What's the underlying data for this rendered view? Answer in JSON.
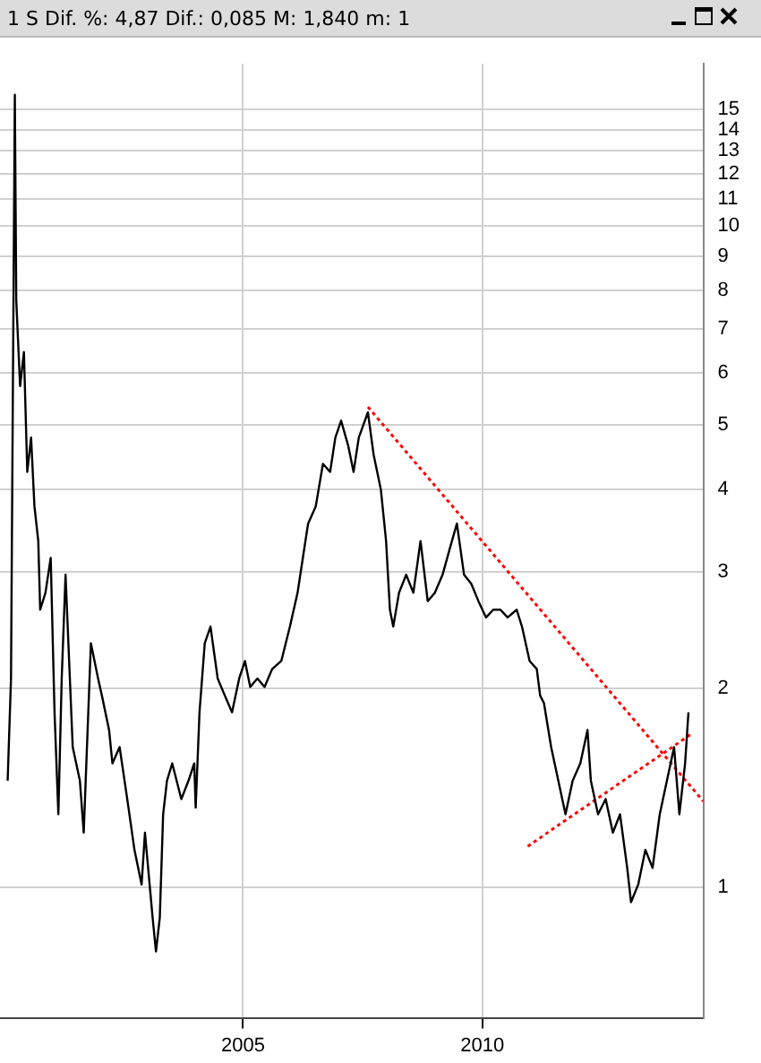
{
  "chart_data": {
    "type": "line",
    "title": "1 S Dif. %: 4,87 Dif.: 0,085 M: 1,840 m: 1",
    "log": "y",
    "grid": true,
    "legend": false,
    "marker": "none",
    "xlim": [
      1999.92,
      2014.62
    ],
    "xticks": [
      2005,
      2010
    ],
    "ylim": [
      0.635,
      17.6
    ],
    "yticks": [
      1,
      2,
      3,
      4,
      5,
      6,
      7,
      8,
      9,
      10,
      11,
      12,
      13,
      14,
      15
    ],
    "series": [
      {
        "color": "#000000",
        "x": [
          2000.08,
          2000.15,
          2000.23,
          2000.26,
          2000.34,
          2000.42,
          2000.49,
          2000.57,
          2000.64,
          2000.72,
          2000.76,
          2000.87,
          2000.98,
          2001.06,
          2001.14,
          2001.21,
          2001.29,
          2001.44,
          2001.59,
          2001.67,
          2001.82,
          2001.97,
          2002.05,
          2002.2,
          2002.27,
          2002.42,
          2002.58,
          2002.73,
          2002.88,
          2002.95,
          2003.11,
          2003.18,
          2003.26,
          2003.33,
          2003.41,
          2003.52,
          2003.71,
          2003.86,
          2003.98,
          2004.01,
          2004.09,
          2004.2,
          2004.32,
          2004.47,
          2004.62,
          2004.77,
          2004.92,
          2005.04,
          2005.15,
          2005.3,
          2005.45,
          2005.61,
          2005.8,
          2005.98,
          2006.14,
          2006.25,
          2006.36,
          2006.52,
          2006.67,
          2006.82,
          2006.93,
          2007.05,
          2007.2,
          2007.31,
          2007.42,
          2007.61,
          2007.73,
          2007.88,
          2007.99,
          2008.07,
          2008.14,
          2008.26,
          2008.41,
          2008.56,
          2008.71,
          2008.86,
          2009.01,
          2009.17,
          2009.32,
          2009.47,
          2009.62,
          2009.77,
          2009.92,
          2010.08,
          2010.23,
          2010.38,
          2010.53,
          2010.72,
          2010.83,
          2010.99,
          2011.14,
          2011.21,
          2011.29,
          2011.44,
          2011.59,
          2011.74,
          2011.89,
          2012.05,
          2012.2,
          2012.27,
          2012.42,
          2012.58,
          2012.73,
          2012.88,
          2013.03,
          2013.11,
          2013.26,
          2013.41,
          2013.56,
          2013.71,
          2013.86,
          2014.01,
          2014.12,
          2014.24,
          2014.31
        ],
        "values": [
          1.45,
          2.07,
          15.8,
          7.72,
          5.73,
          6.45,
          4.25,
          4.79,
          3.77,
          3.34,
          2.63,
          2.79,
          3.15,
          1.84,
          1.29,
          2.07,
          2.97,
          1.63,
          1.45,
          1.21,
          2.34,
          2.07,
          1.95,
          1.73,
          1.54,
          1.63,
          1.36,
          1.14,
          1.01,
          1.21,
          0.9,
          0.8,
          0.9,
          1.29,
          1.45,
          1.54,
          1.36,
          1.45,
          1.54,
          1.32,
          1.84,
          2.34,
          2.48,
          2.07,
          1.95,
          1.84,
          2.07,
          2.2,
          2.01,
          2.07,
          2.01,
          2.14,
          2.2,
          2.48,
          2.79,
          3.15,
          3.55,
          3.77,
          4.37,
          4.25,
          4.79,
          5.08,
          4.65,
          4.25,
          4.79,
          5.23,
          4.51,
          4.0,
          3.34,
          2.63,
          2.48,
          2.79,
          2.97,
          2.79,
          3.34,
          2.71,
          2.79,
          2.97,
          3.25,
          3.55,
          2.97,
          2.88,
          2.71,
          2.56,
          2.63,
          2.63,
          2.56,
          2.63,
          2.48,
          2.2,
          2.14,
          1.95,
          1.9,
          1.63,
          1.45,
          1.29,
          1.45,
          1.54,
          1.73,
          1.45,
          1.29,
          1.36,
          1.21,
          1.29,
          1.07,
          0.95,
          1.01,
          1.14,
          1.07,
          1.29,
          1.45,
          1.63,
          1.29,
          1.54,
          1.84
        ]
      },
      {
        "type": "line",
        "color": "#ff0000",
        "line_style": "dotted",
        "x": [
          2007.61,
          2014.62
        ],
        "values": [
          5.33,
          1.35
        ]
      },
      {
        "type": "line",
        "color": "#ff0000",
        "line_style": "dotted",
        "x": [
          2010.95,
          2014.39
        ],
        "values": [
          1.154,
          1.71
        ]
      }
    ]
  }
}
